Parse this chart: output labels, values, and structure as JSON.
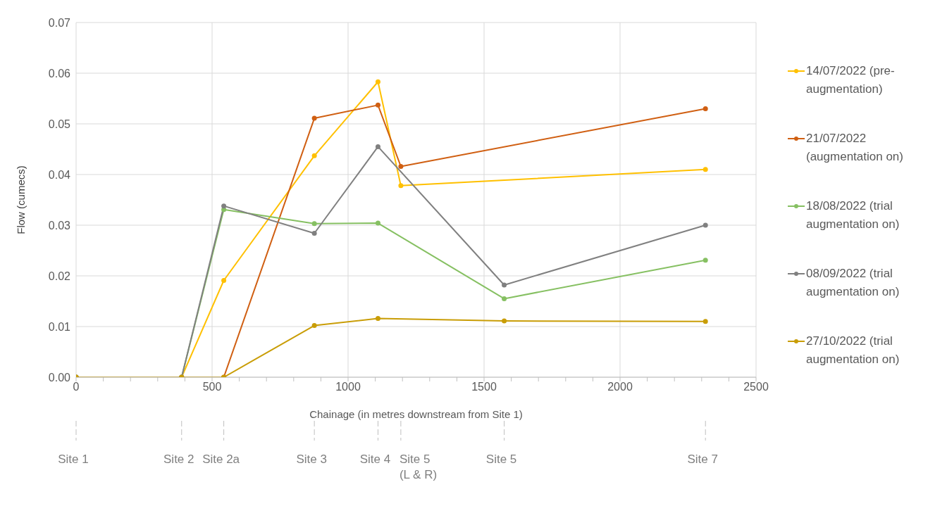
{
  "chart_data": {
    "type": "line",
    "xlabel": "Chainage (in metres downstream from Site 1)",
    "ylabel": "Flow (cumecs)",
    "xlim": [
      0,
      2500
    ],
    "xticks": [
      0,
      {
        "value": 100,
        "label": null
      },
      {
        "value": 200,
        "label": null
      },
      {
        "value": 300,
        "label": null
      },
      {
        "value": 400,
        "label": null
      },
      500,
      {
        "value": 600,
        "label": null
      },
      {
        "value": 700,
        "label": null
      },
      {
        "value": 800,
        "label": null
      },
      {
        "value": 900,
        "label": null
      },
      1000,
      {
        "value": 1100,
        "label": null
      },
      {
        "value": 1200,
        "label": null
      },
      {
        "value": 1300,
        "label": null
      },
      {
        "value": 1400,
        "label": null
      },
      1500,
      {
        "value": 1600,
        "label": null
      },
      {
        "value": 1700,
        "label": null
      },
      {
        "value": 1800,
        "label": null
      },
      {
        "value": 1900,
        "label": null
      },
      2000,
      {
        "value": 2100,
        "label": null
      },
      {
        "value": 2200,
        "label": null
      },
      {
        "value": 2300,
        "label": null
      },
      {
        "value": 2400,
        "label": null
      },
      2500
    ],
    "ylim": [
      0,
      0.07
    ],
    "yticks": [
      {
        "value": 0,
        "label": "0.00"
      },
      {
        "value": 0.01,
        "label": "0.01"
      },
      {
        "value": 0.02,
        "label": "0.02"
      },
      {
        "value": 0.03,
        "label": "0.03"
      },
      {
        "value": 0.04,
        "label": "0.04"
      },
      {
        "value": 0.05,
        "label": "0.05"
      },
      {
        "value": 0.06,
        "label": "0.06"
      },
      {
        "value": 0.07,
        "label": "0.07"
      }
    ],
    "grid": true,
    "legend": "right",
    "marker": "circle",
    "line_style": "solid",
    "series": [
      {
        "name": "14/07/2022 (pre-augmentation)",
        "color": "#ffc000",
        "x": [
          0,
          388,
          543,
          876,
          1110,
          1194,
          2314
        ],
        "values": [
          0,
          0,
          0.0191,
          0.0437,
          0.0583,
          0.0378,
          0.041
        ]
      },
      {
        "name": "21/07/2022 (augmentation on)",
        "color": "#d05f12",
        "x": [
          0,
          388,
          543,
          876,
          1110,
          1194,
          2314
        ],
        "values": [
          0,
          0,
          0,
          0.0511,
          0.0537,
          0.0416,
          0.053
        ]
      },
      {
        "name": "18/08/2022 (trial augmentation on)",
        "color": "#86c062",
        "x": [
          0,
          388,
          543,
          876,
          1110,
          1574,
          2314
        ],
        "values": [
          0,
          0,
          0.0331,
          0.0303,
          0.0304,
          0.0155,
          0.0231
        ]
      },
      {
        "name": "08/09/2022 (trial augmentation on)",
        "color": "#808080",
        "x": [
          0,
          388,
          543,
          876,
          1110,
          1574,
          2314
        ],
        "values": [
          0,
          0,
          0.0338,
          0.0284,
          0.0455,
          0.0182,
          0.03
        ]
      },
      {
        "name": "27/10/2022 (trial augmentation on)",
        "color": "#c99d06",
        "x": [
          0,
          388,
          543,
          876,
          1110,
          1574,
          2314
        ],
        "values": [
          0,
          0,
          0,
          0.0102,
          0.0116,
          0.0111,
          0.011
        ]
      }
    ],
    "ref_lines": [
      {
        "axis": "x",
        "value": 0,
        "label": "Site 1",
        "line_style": "dashed"
      },
      {
        "axis": "x",
        "value": 388,
        "label": "Site 2",
        "line_style": "dashed"
      },
      {
        "axis": "x",
        "value": 543,
        "label": "Site 2a",
        "line_style": "dashed"
      },
      {
        "axis": "x",
        "value": 876,
        "label": "Site 3",
        "line_style": "dashed"
      },
      {
        "axis": "x",
        "value": 1110,
        "label": "Site 4",
        "line_style": "dashed"
      },
      {
        "axis": "x",
        "value": 1194,
        "label": "Site 5\n(L & R)",
        "line_style": "dashed"
      },
      {
        "axis": "x",
        "value": 1574,
        "label": "Site 5",
        "line_style": "dashed"
      },
      {
        "axis": "x",
        "value": 2314,
        "label": "Site 7",
        "line_style": "dashed"
      }
    ]
  }
}
